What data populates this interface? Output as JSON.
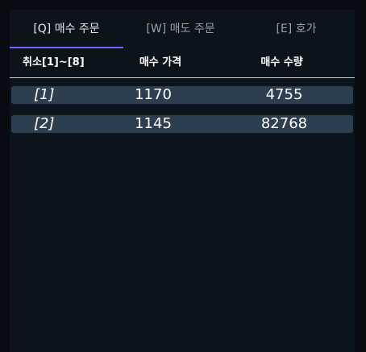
{
  "tabs": [
    {
      "label": "[Q] 매수 주문",
      "active": true
    },
    {
      "label": "[W] 매도 주문",
      "active": false
    },
    {
      "label": "[E] 호가",
      "active": false
    }
  ],
  "table": {
    "headers": {
      "cancel": "취소[1]~[8]",
      "price": "매수 가격",
      "quantity": "매수 수량"
    },
    "rows": [
      {
        "id": "[1]",
        "price": "1170",
        "quantity": "4755"
      },
      {
        "id": "[2]",
        "price": "1145",
        "quantity": "82768"
      }
    ]
  },
  "colors": {
    "accent": "#7b61ff",
    "row_bg": "#2c3e50",
    "panel_bg": "#0c141b",
    "page_bg": "#070b0f"
  }
}
